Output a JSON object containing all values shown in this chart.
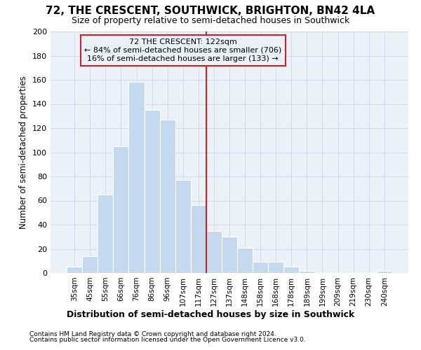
{
  "title": "72, THE CRESCENT, SOUTHWICK, BRIGHTON, BN42 4LA",
  "subtitle": "Size of property relative to semi-detached houses in Southwick",
  "xlabel": "Distribution of semi-detached houses by size in Southwick",
  "ylabel": "Number of semi-detached properties",
  "categories": [
    "35sqm",
    "45sqm",
    "55sqm",
    "66sqm",
    "76sqm",
    "86sqm",
    "96sqm",
    "107sqm",
    "117sqm",
    "127sqm",
    "137sqm",
    "148sqm",
    "158sqm",
    "168sqm",
    "178sqm",
    "189sqm",
    "199sqm",
    "209sqm",
    "219sqm",
    "230sqm",
    "240sqm"
  ],
  "values": [
    5,
    14,
    65,
    105,
    158,
    135,
    127,
    77,
    56,
    35,
    30,
    21,
    9,
    9,
    5,
    2,
    0,
    0,
    0,
    0,
    2
  ],
  "bar_color": "#c5d9ee",
  "bar_edgecolor": "#ffffff",
  "grid_color": "#d0dde8",
  "bg_color": "#ffffff",
  "plot_bg_color": "#eaf1f8",
  "vline_color": "#cc2222",
  "annotation_box_color": "#cc2222",
  "property_label": "72 THE CRESCENT: 122sqm",
  "pct_smaller": 84,
  "pct_larger": 16,
  "n_smaller": 706,
  "n_larger": 133,
  "ylim": [
    0,
    200
  ],
  "yticks": [
    0,
    20,
    40,
    60,
    80,
    100,
    120,
    140,
    160,
    180,
    200
  ],
  "vline_index": 8.5,
  "footer1": "Contains HM Land Registry data © Crown copyright and database right 2024.",
  "footer2": "Contains public sector information licensed under the Open Government Licence v3.0."
}
